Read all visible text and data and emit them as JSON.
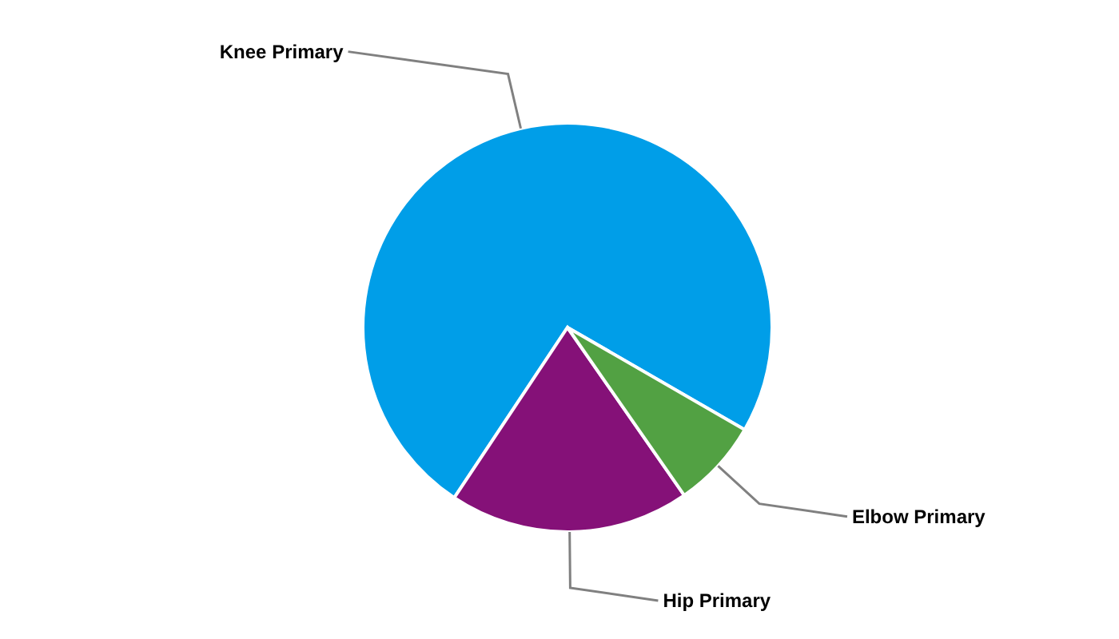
{
  "chart_data": {
    "type": "pie",
    "categories": [
      "Knee Primary",
      "Hip Primary",
      "Elbow Primary"
    ],
    "values": [
      74,
      19,
      7
    ],
    "colors": [
      "#009ee8",
      "#851178",
      "#52a143"
    ],
    "legend": false
  }
}
